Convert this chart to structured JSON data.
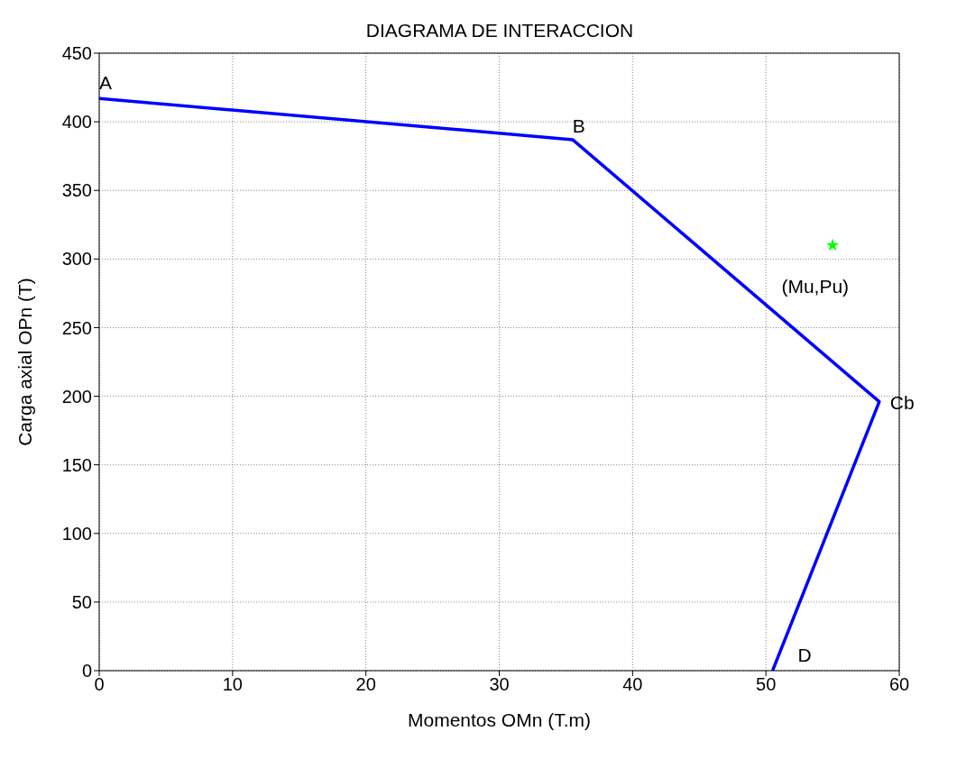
{
  "chart_data": {
    "type": "line",
    "title": "DIAGRAMA DE INTERACCION",
    "xlabel": "Momentos OMn (T.m)",
    "ylabel": "Carga axial OPn (T)",
    "series": [
      {
        "color": "#0000ff",
        "x": [
          0,
          35.5,
          58.5,
          50.5
        ],
        "values": [
          417,
          387,
          196,
          0
        ],
        "marker": "none"
      },
      {
        "type": "scatter",
        "color": "#00ff00",
        "x": [
          55
        ],
        "values": [
          310
        ],
        "marker": "star"
      }
    ],
    "annotations": [
      {
        "text": "A",
        "x": 0,
        "y": 417
      },
      {
        "text": "B",
        "x": 35.5,
        "y": 387
      },
      {
        "text": "Cb",
        "x": 58.5,
        "y": 196
      },
      {
        "text": "D",
        "x": 50.5,
        "y": 0
      },
      {
        "text": "(Mu,Pu)",
        "x": 55,
        "y": 310
      }
    ],
    "xlim": [
      0,
      60
    ],
    "xticks": [
      0,
      10,
      20,
      30,
      40,
      50,
      60
    ],
    "ylim": [
      0,
      450
    ],
    "yticks": [
      0,
      50,
      100,
      150,
      200,
      250,
      300,
      350,
      400,
      450
    ],
    "grid": true
  }
}
